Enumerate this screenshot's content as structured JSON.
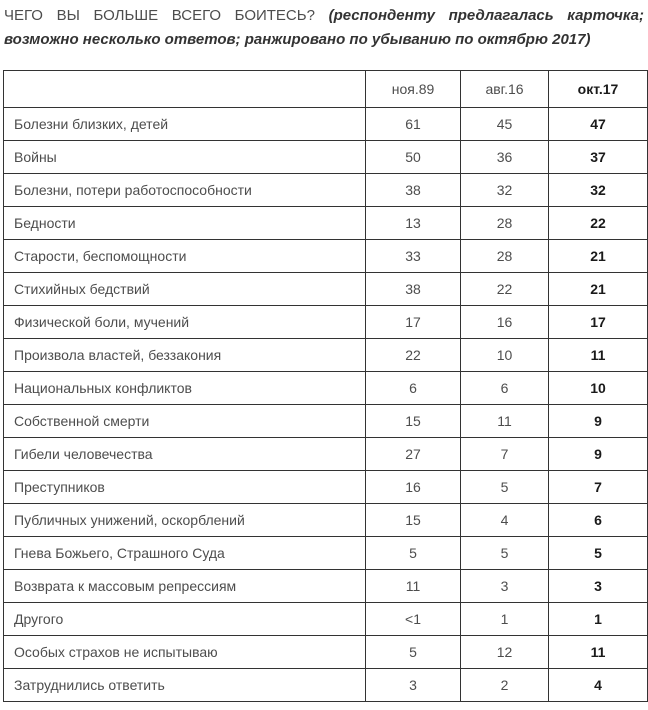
{
  "title": {
    "question": "ЧЕГО ВЫ БОЛЬШЕ ВСЕГО БОИТЕСЬ?",
    "note": "(респонденту предлагалась карточка; возможно несколько ответов; ранжировано по убыванию по октябрю 2017)"
  },
  "table": {
    "corner_label": "",
    "columns": [
      "ноя.89",
      "авг.16",
      "окт.17"
    ],
    "rows": [
      {
        "label": "Болезни близких, детей",
        "values": [
          "61",
          "45",
          "47"
        ]
      },
      {
        "label": "Войны",
        "values": [
          "50",
          "36",
          "37"
        ]
      },
      {
        "label": "Болезни, потери работоспособности",
        "values": [
          "38",
          "32",
          "32"
        ]
      },
      {
        "label": "Бедности",
        "values": [
          "13",
          "28",
          "22"
        ]
      },
      {
        "label": "Старости, беспомощности",
        "values": [
          "33",
          "28",
          "21"
        ]
      },
      {
        "label": "Стихийных бедствий",
        "values": [
          "38",
          "22",
          "21"
        ]
      },
      {
        "label": "Физической боли, мучений",
        "values": [
          "17",
          "16",
          "17"
        ]
      },
      {
        "label": "Произвола властей, беззакония",
        "values": [
          "22",
          "10",
          "11"
        ]
      },
      {
        "label": "Национальных конфликтов",
        "values": [
          "6",
          "6",
          "10"
        ]
      },
      {
        "label": "Собственной смерти",
        "values": [
          "15",
          "11",
          "9"
        ]
      },
      {
        "label": "Гибели человечества",
        "values": [
          "27",
          "7",
          "9"
        ]
      },
      {
        "label": "Преступников",
        "values": [
          "16",
          "5",
          "7"
        ]
      },
      {
        "label": "Публичных унижений, оскорблений",
        "values": [
          "15",
          "4",
          "6"
        ]
      },
      {
        "label": "Гнева Божьего, Страшного Суда",
        "values": [
          "5",
          "5",
          "5"
        ]
      },
      {
        "label": "Возврата к массовым репрессиям",
        "values": [
          "11",
          "3",
          "3"
        ]
      },
      {
        "label": "Другого",
        "values": [
          "<1",
          "1",
          "1"
        ]
      },
      {
        "label": "Особых страхов не испытываю",
        "values": [
          "5",
          "12",
          "11"
        ]
      },
      {
        "label": "Затруднились ответить",
        "values": [
          "3",
          "2",
          "4"
        ]
      }
    ]
  }
}
